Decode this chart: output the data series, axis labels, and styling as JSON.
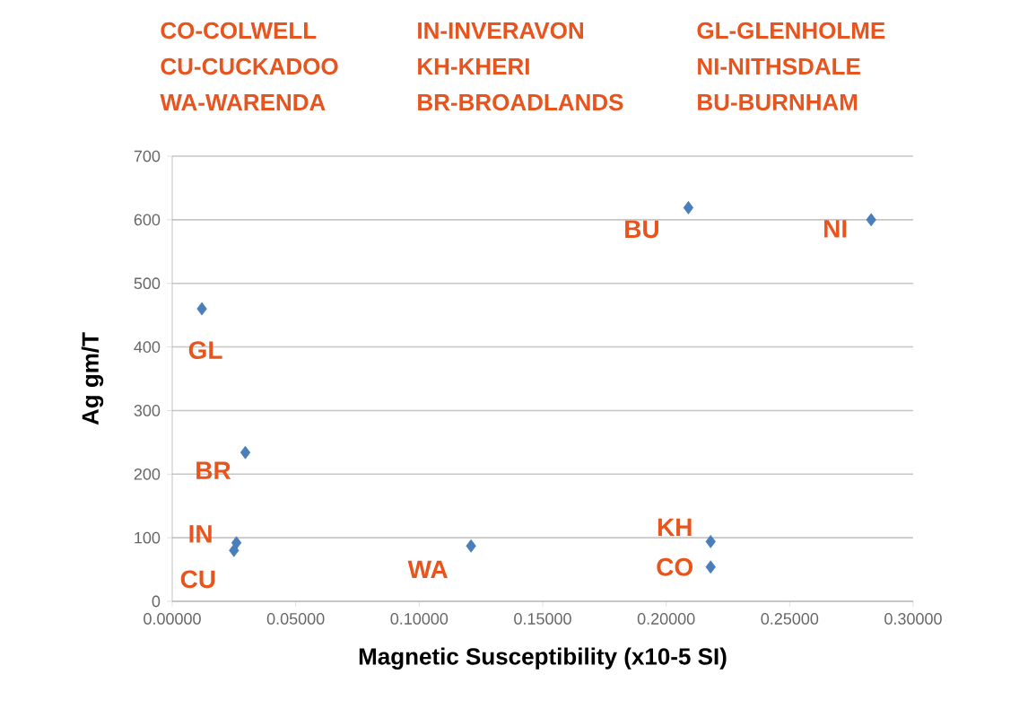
{
  "chart_data": {
    "type": "scatter",
    "xlabel": "Magnetic Susceptibility (x10-5 SI)",
    "ylabel": "Ag gm/T",
    "x": [
      0.012,
      0.0296,
      0.026,
      0.025,
      0.121,
      0.209,
      0.283,
      0.218,
      0.218
    ],
    "values": [
      460,
      234,
      92,
      80,
      87,
      619,
      600,
      94,
      54
    ],
    "color": "#4a7ebb",
    "marker": "diamond",
    "grid": "y",
    "xlim": [
      0,
      0.3
    ],
    "ylim": [
      0,
      700
    ],
    "xticks": [
      {
        "value": 0,
        "label": "0.00000"
      },
      {
        "value": 0.05,
        "label": "0.05000"
      },
      {
        "value": 0.1,
        "label": "0.10000"
      },
      {
        "value": 0.15,
        "label": "0.15000"
      },
      {
        "value": 0.2,
        "label": "0.20000"
      },
      {
        "value": 0.25,
        "label": "0.25000"
      },
      {
        "value": 0.3,
        "label": "0.30000"
      }
    ],
    "yticks": [
      0,
      100,
      200,
      300,
      400,
      500,
      600,
      700
    ],
    "annotations": [
      "CO-COLWELL",
      "IN-INVERAVON",
      "GL-GLENHOLME",
      "CU-CUCKADOO",
      "KH-KHERI",
      "NI-NITHSDALE",
      "WA-WARENDA",
      "BR-BROADLANDS",
      "BU-BURNHAM",
      {
        "text": "GL",
        "x": 0.012,
        "y": 460
      },
      {
        "text": "BR",
        "x": 0.0296,
        "y": 234
      },
      {
        "text": "IN",
        "x": 0.026,
        "y": 92
      },
      {
        "text": "CU",
        "x": 0.025,
        "y": 80
      },
      {
        "text": "WA",
        "x": 0.121,
        "y": 87
      },
      {
        "text": "BU",
        "x": 0.209,
        "y": 619
      },
      {
        "text": "NI",
        "x": 0.283,
        "y": 600
      },
      {
        "text": "KH",
        "x": 0.218,
        "y": 94
      },
      {
        "text": "CO",
        "x": 0.218,
        "y": 54
      }
    ]
  }
}
